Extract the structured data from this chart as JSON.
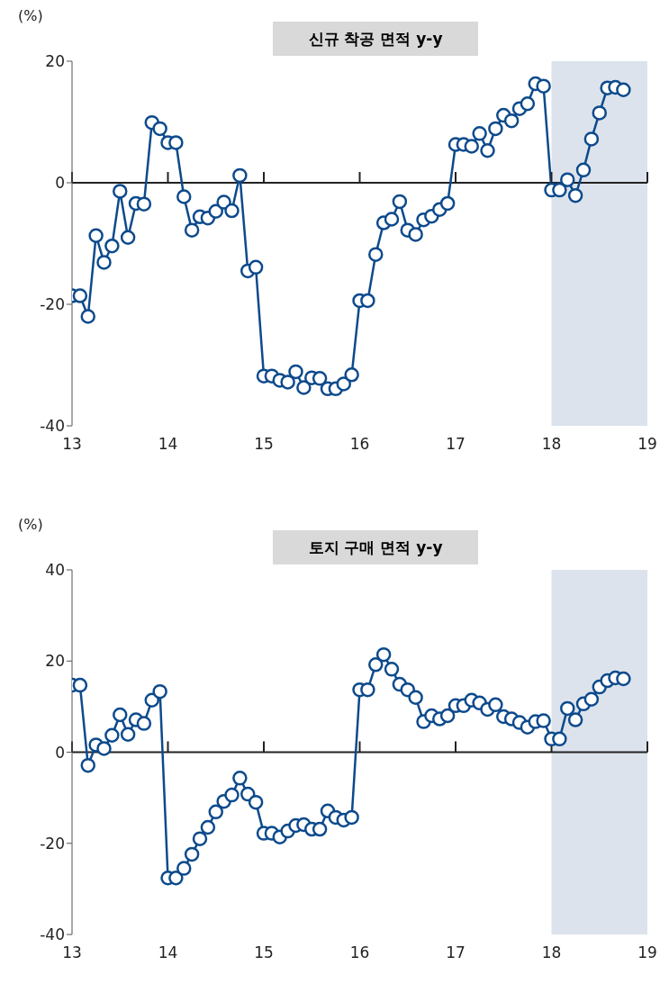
{
  "chart_data": [
    {
      "type": "line",
      "title": "신규 착공 면적 y-y",
      "ylabel": "(%)",
      "x": [
        "2013-01",
        "2013-02",
        "2013-03",
        "2013-04",
        "2013-05",
        "2013-06",
        "2013-07",
        "2013-08",
        "2013-09",
        "2013-10",
        "2013-11",
        "2013-12",
        "2014-01",
        "2014-02",
        "2014-03",
        "2014-04",
        "2014-05",
        "2014-06",
        "2014-07",
        "2014-08",
        "2014-09",
        "2014-10",
        "2014-11",
        "2014-12",
        "2015-01",
        "2015-02",
        "2015-03",
        "2015-04",
        "2015-05",
        "2015-06",
        "2015-07",
        "2015-08",
        "2015-09",
        "2015-10",
        "2015-11",
        "2015-12",
        "2016-01",
        "2016-02",
        "2016-03",
        "2016-04",
        "2016-05",
        "2016-06",
        "2016-07",
        "2016-08",
        "2016-09",
        "2016-10",
        "2016-11",
        "2016-12",
        "2017-01",
        "2017-02",
        "2017-03",
        "2017-04",
        "2017-05",
        "2017-06",
        "2017-07",
        "2017-08",
        "2017-09",
        "2017-10",
        "2017-11",
        "2017-12",
        "2018-01",
        "2018-02",
        "2018-03",
        "2018-04",
        "2018-05",
        "2018-06",
        "2018-07",
        "2018-08",
        "2018-09",
        "2018-10"
      ],
      "series": [
        {
          "color": "#0d4a8c",
          "values": [
            -18.6,
            -18.6,
            -22,
            -8.7,
            -13.1,
            -10.4,
            -1.4,
            -9,
            -3.4,
            -3.5,
            9.9,
            8.9,
            6.6,
            6.6,
            -2.3,
            -7.8,
            -5.6,
            -5.8,
            -4.7,
            -3.2,
            -4.6,
            1.2,
            -14.5,
            -13.9,
            -31.8,
            -31.8,
            -32.5,
            -32.8,
            -31.1,
            -33.7,
            -32.1,
            -32.2,
            -33.9,
            -33.9,
            -33.1,
            -31.6,
            -19.4,
            -19.4,
            -11.8,
            -6.6,
            -6,
            -3.1,
            -7.8,
            -8.5,
            -6.1,
            -5.5,
            -4.4,
            -3.4,
            6.3,
            6.3,
            6,
            8.1,
            5.3,
            8.9,
            11.1,
            10.2,
            12.2,
            13,
            16.3,
            15.9,
            -1.2,
            -1.2,
            0.5,
            -2.1,
            2.1,
            7.2,
            11.5,
            15.6,
            15.7,
            15.3
          ]
        }
      ],
      "xlim": [
        "2013-01",
        "2019-01"
      ],
      "xticks": [
        {
          "value": "2013-01",
          "label": "13"
        },
        {
          "value": "2014-01",
          "label": "14"
        },
        {
          "value": "2015-01",
          "label": "15"
        },
        {
          "value": "2016-01",
          "label": "16"
        },
        {
          "value": "2017-01",
          "label": "17"
        },
        {
          "value": "2018-01",
          "label": "18"
        },
        {
          "value": "2019-01",
          "label": "19"
        }
      ],
      "ylim": [
        -40,
        20
      ],
      "yticks": [
        -40,
        -20,
        0,
        20
      ],
      "ref_lines": [
        {
          "axis": "y",
          "value": 0,
          "color": "#222222"
        }
      ],
      "bands": [
        {
          "axis": "x",
          "from": "2018-01",
          "to": "2019-01",
          "color": "#dce3ec"
        }
      ],
      "marker": "circle",
      "grid": false,
      "legend": false
    },
    {
      "type": "line",
      "title": "토지 구매 면적 y-y",
      "ylabel": "(%)",
      "x": [
        "2013-01",
        "2013-02",
        "2013-03",
        "2013-04",
        "2013-05",
        "2013-06",
        "2013-07",
        "2013-08",
        "2013-09",
        "2013-10",
        "2013-11",
        "2013-12",
        "2014-01",
        "2014-02",
        "2014-03",
        "2014-04",
        "2014-05",
        "2014-06",
        "2014-07",
        "2014-08",
        "2014-09",
        "2014-10",
        "2014-11",
        "2014-12",
        "2015-01",
        "2015-02",
        "2015-03",
        "2015-04",
        "2015-05",
        "2015-06",
        "2015-07",
        "2015-08",
        "2015-09",
        "2015-10",
        "2015-11",
        "2015-12",
        "2016-01",
        "2016-02",
        "2016-03",
        "2016-04",
        "2016-05",
        "2016-06",
        "2016-07",
        "2016-08",
        "2016-09",
        "2016-10",
        "2016-11",
        "2016-12",
        "2017-01",
        "2017-02",
        "2017-03",
        "2017-04",
        "2017-05",
        "2017-06",
        "2017-07",
        "2017-08",
        "2017-09",
        "2017-10",
        "2017-11",
        "2017-12",
        "2018-01",
        "2018-02",
        "2018-03",
        "2018-04",
        "2018-05",
        "2018-06",
        "2018-07",
        "2018-08",
        "2018-09",
        "2018-10"
      ],
      "series": [
        {
          "color": "#0d4a8c",
          "values": [
            14.7,
            14.7,
            -2.9,
            1.6,
            0.8,
            3.7,
            8.2,
            3.9,
            7.1,
            6.3,
            11.4,
            13.3,
            -27.6,
            -27.6,
            -25.5,
            -22.4,
            -19,
            -16.5,
            -13.1,
            -10.8,
            -9.4,
            -5.7,
            -9.2,
            -11,
            -17.8,
            -17.8,
            -18.6,
            -17.3,
            -16.1,
            -15.9,
            -16.9,
            -16.9,
            -12.9,
            -14.3,
            -14.9,
            -14.3,
            13.7,
            13.7,
            19.2,
            21.4,
            18.2,
            14.9,
            13.7,
            12,
            6.7,
            8,
            7.3,
            8,
            10.2,
            10.2,
            11.4,
            10.8,
            9.4,
            10.4,
            7.8,
            7.3,
            6.5,
            5.5,
            6.7,
            6.9,
            2.9,
            2.9,
            9.6,
            7.1,
            10.6,
            11.6,
            14.3,
            15.7,
            16.3,
            16.1
          ]
        }
      ],
      "xlim": [
        "2013-01",
        "2019-01"
      ],
      "xticks": [
        {
          "value": "2013-01",
          "label": "13"
        },
        {
          "value": "2014-01",
          "label": "14"
        },
        {
          "value": "2015-01",
          "label": "15"
        },
        {
          "value": "2016-01",
          "label": "16"
        },
        {
          "value": "2017-01",
          "label": "17"
        },
        {
          "value": "2018-01",
          "label": "18"
        },
        {
          "value": "2019-01",
          "label": "19"
        }
      ],
      "ylim": [
        -40,
        40
      ],
      "yticks": [
        -40,
        -20,
        0,
        20,
        40
      ],
      "ref_lines": [
        {
          "axis": "y",
          "value": 0,
          "color": "#222222"
        }
      ],
      "bands": [
        {
          "axis": "x",
          "from": "2018-01",
          "to": "2019-01",
          "color": "#dce3ec"
        }
      ],
      "marker": "circle",
      "grid": false,
      "legend": false
    }
  ]
}
